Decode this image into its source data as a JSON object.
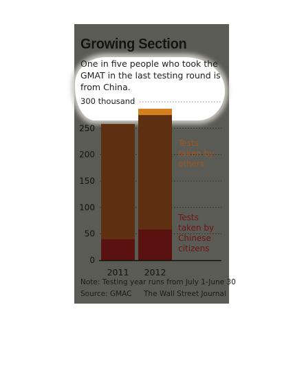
{
  "title": "Growing Section",
  "subtitle": "One in five people who took the GMAT in the last testing round is from China.",
  "unit_label": "300 thousand",
  "note": "Note: Testing year runs from July 1-June 30",
  "source": "Source: GMAC",
  "publisher": "The Wall Street Journal",
  "chart_data": {
    "type": "bar",
    "stacked": true,
    "categories": [
      "2011",
      "2012"
    ],
    "series": [
      {
        "name": "Tests taken by Chinese citizens",
        "values": [
          40,
          58
        ],
        "color": "#5a1210"
      },
      {
        "name": "Tests taken by others",
        "values": [
          218,
          217
        ],
        "color": "#5e2f10"
      }
    ],
    "highlight": {
      "category": "2012",
      "values": [
        275,
        287
      ],
      "color": "#d4801f"
    },
    "ylim": [
      0,
      300
    ],
    "yticks": [
      0,
      50,
      100,
      150,
      200,
      250
    ],
    "ytick_labels": [
      "0",
      "50",
      "100",
      "150",
      "200",
      "250"
    ],
    "grid": "dotted",
    "legend": [
      {
        "label": "Tests\ntaken by\nothers",
        "color": "#9c5520"
      },
      {
        "label": "Tests\ntaken by\nChinese\ncitizens",
        "color": "#6e1511"
      }
    ]
  }
}
